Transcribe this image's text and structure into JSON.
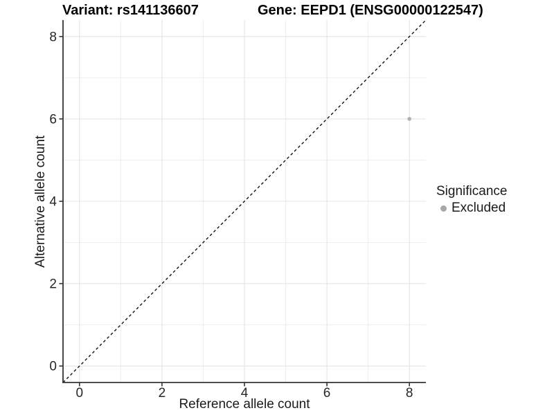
{
  "colors": {
    "background": "#ffffff",
    "grid_major": "#e4e4e4",
    "grid_minor": "#eeeeee",
    "axis_line": "#333333",
    "tick_mark": "#333333",
    "tick_label": "#262626",
    "point": "#b0b0b0",
    "legend_dot": "#a8a8a8",
    "reference_line": "#000000"
  },
  "chart_data": {
    "type": "scatter",
    "title_left": "Variant: rs141136607",
    "title_right": "Gene: EEPD1 (ENSG00000122547)",
    "xlabel": "Reference allele count",
    "ylabel": "Alternative allele count",
    "xlim": [
      -0.4,
      8.4
    ],
    "ylim": [
      -0.4,
      8.4
    ],
    "xticks": [
      0,
      2,
      4,
      6,
      8
    ],
    "yticks": [
      0,
      2,
      4,
      6,
      8
    ],
    "xticks_minor": [
      1,
      3,
      5,
      7
    ],
    "yticks_minor": [
      1,
      3,
      5,
      7
    ],
    "grid": "major+minor",
    "series": [
      {
        "name": "Excluded",
        "color": "#b0b0b0",
        "points": [
          {
            "x": 8,
            "y": 6
          }
        ]
      }
    ],
    "reference_line": {
      "kind": "y=x",
      "style": "dashed",
      "color": "#000000"
    },
    "legend": {
      "title": "Significance",
      "position": "right",
      "items": [
        {
          "label": "Excluded",
          "color": "#a8a8a8"
        }
      ]
    }
  }
}
